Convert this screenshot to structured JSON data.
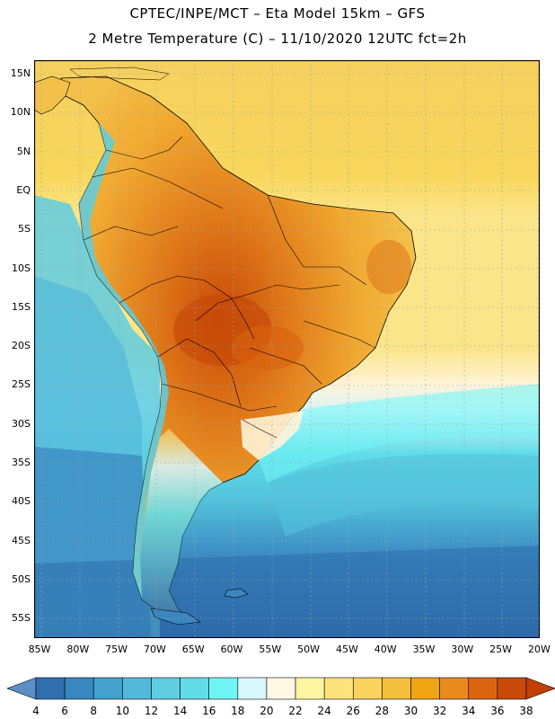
{
  "title": {
    "line1": "CPTEC/INPE/MCT –  Eta Model 15km – GFS",
    "line2": "2 Metre Temperature (C) – 11/10/2020 12UTC fct=2h"
  },
  "lat_labels": [
    "15N",
    "10N",
    "5N",
    "EQ",
    "5S",
    "10S",
    "15S",
    "20S",
    "25S",
    "30S",
    "35S",
    "40S",
    "45S",
    "50S",
    "55S"
  ],
  "lon_labels": [
    "85W",
    "80W",
    "75W",
    "70W",
    "65W",
    "60W",
    "55W",
    "50W",
    "45W",
    "40W",
    "35W",
    "30W",
    "25W",
    "20W"
  ],
  "colorbar": {
    "labels": [
      "4",
      "6",
      "8",
      "10",
      "12",
      "14",
      "16",
      "18",
      "20",
      "22",
      "24",
      "26",
      "28",
      "30",
      "32",
      "34",
      "36",
      "38"
    ],
    "colors": [
      "#5a8fc8",
      "#2f6fae",
      "#3a86c0",
      "#43a2cf",
      "#53b9db",
      "#5ecde0",
      "#62dde8",
      "#6ff5f5",
      "#d8f7fb",
      "#fff8e4",
      "#fdf5a0",
      "#fbe27a",
      "#f8d25c",
      "#f3bf3d",
      "#f0a514",
      "#e98a1c",
      "#db6410",
      "#c84a08",
      "#c04005"
    ]
  }
}
